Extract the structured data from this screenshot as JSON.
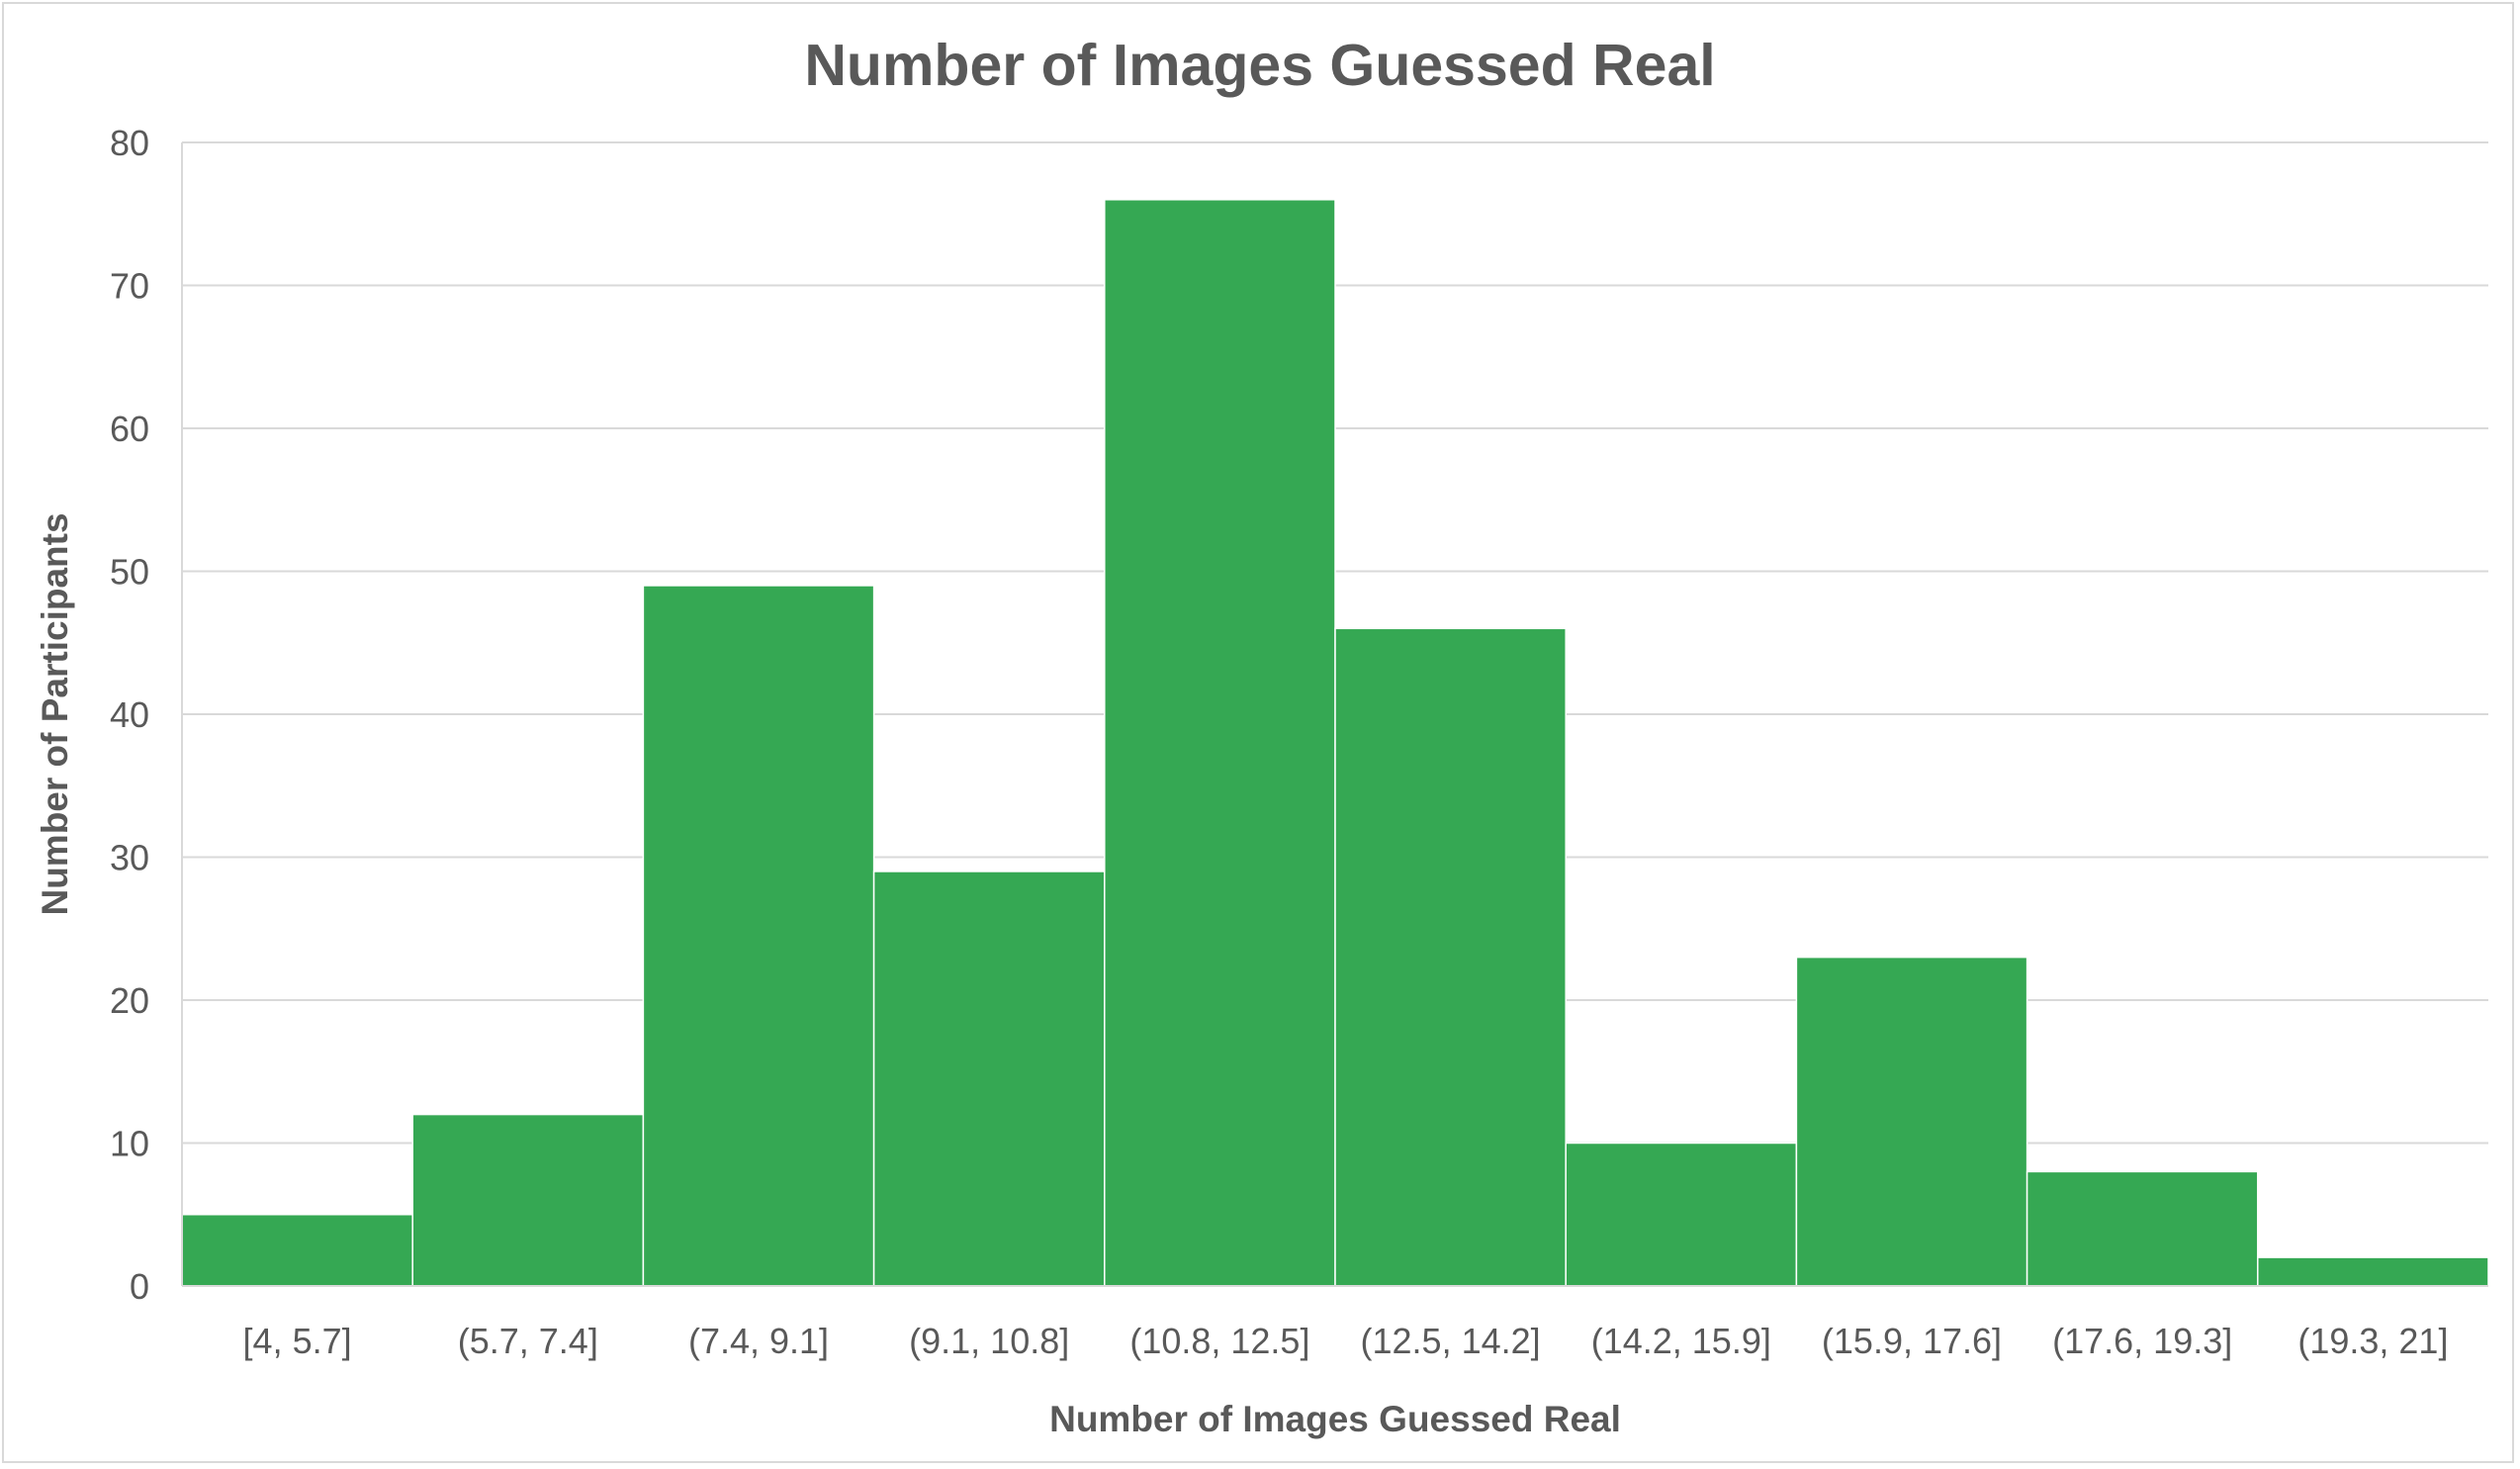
{
  "chart_data": {
    "type": "bar",
    "title": "Number of Images Guessed Real",
    "xlabel": "Number of Images Guessed Real",
    "ylabel": "Number of Participants",
    "categories": [
      "[4, 5.7]",
      "(5.7, 7.4]",
      "(7.4, 9.1]",
      "(9.1, 10.8]",
      "(10.8, 12.5]",
      "(12.5, 14.2]",
      "(14.2, 15.9]",
      "(15.9, 17.6]",
      "(17.6, 19.3]",
      "(19.3, 21]"
    ],
    "values": [
      5,
      12,
      49,
      29,
      76,
      46,
      10,
      23,
      8,
      2
    ],
    "ylim": [
      0,
      80
    ],
    "yticks": [
      0,
      10,
      20,
      30,
      40,
      50,
      60,
      70,
      80
    ],
    "grid": true,
    "legend": "none",
    "colors": {
      "bar": "#35a853",
      "bar_edge": "#ffffff",
      "grid": "#d9d9d9",
      "text": "#595959"
    }
  }
}
